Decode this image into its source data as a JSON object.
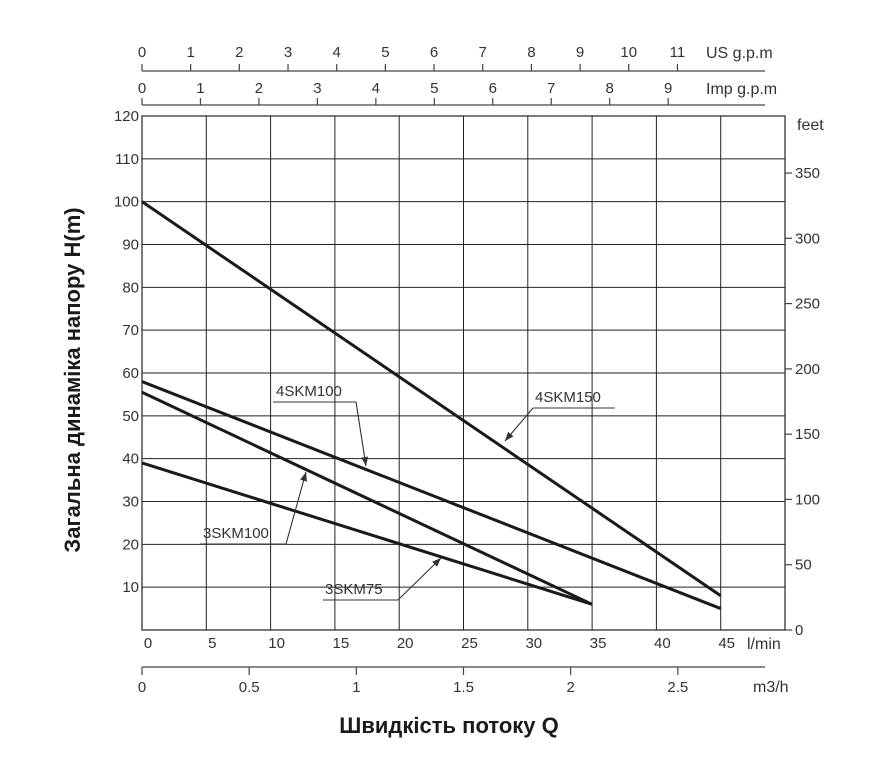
{
  "chart_data": {
    "type": "line",
    "ylabel": "Загальна динаміка напору H(m)",
    "xlabel": "Швидкість потоку Q",
    "x_unit": "l/min",
    "y_unit": "m",
    "xlim": [
      0,
      50
    ],
    "ylim": [
      0,
      120
    ],
    "x_ticks": [
      0,
      5,
      10,
      15,
      20,
      25,
      30,
      35,
      40,
      45
    ],
    "y_ticks": [
      10,
      20,
      30,
      40,
      50,
      60,
      70,
      80,
      90,
      100,
      110,
      120
    ],
    "grid": true,
    "secondary_axes": {
      "m3h": {
        "unit": "m3/h",
        "ticks": [
          0,
          0.5,
          1,
          1.5,
          2,
          2.5
        ],
        "tick_labels": [
          "0",
          "0.5",
          "1",
          "1.5",
          "2",
          "2.5"
        ]
      },
      "us_gpm": {
        "unit": "US g.p.m",
        "ticks": [
          0,
          1,
          2,
          3,
          4,
          5,
          6,
          7,
          8,
          9,
          10,
          11
        ]
      },
      "imp_gpm": {
        "unit": "Imp g.p.m",
        "ticks": [
          0,
          1,
          2,
          3,
          4,
          5,
          6,
          7,
          8,
          9
        ]
      },
      "feet": {
        "unit": "feet",
        "ticks": [
          0,
          50,
          100,
          150,
          200,
          250,
          300,
          350
        ]
      }
    },
    "series": [
      {
        "name": "4SKM150",
        "x": [
          0,
          45
        ],
        "y": [
          100,
          8
        ]
      },
      {
        "name": "4SKM100",
        "x": [
          0,
          45
        ],
        "y": [
          58,
          5
        ]
      },
      {
        "name": "3SKM100",
        "x": [
          0,
          35
        ],
        "y": [
          55.5,
          6
        ]
      },
      {
        "name": "3SKM75",
        "x": [
          0,
          35
        ],
        "y": [
          39,
          6
        ]
      }
    ]
  }
}
